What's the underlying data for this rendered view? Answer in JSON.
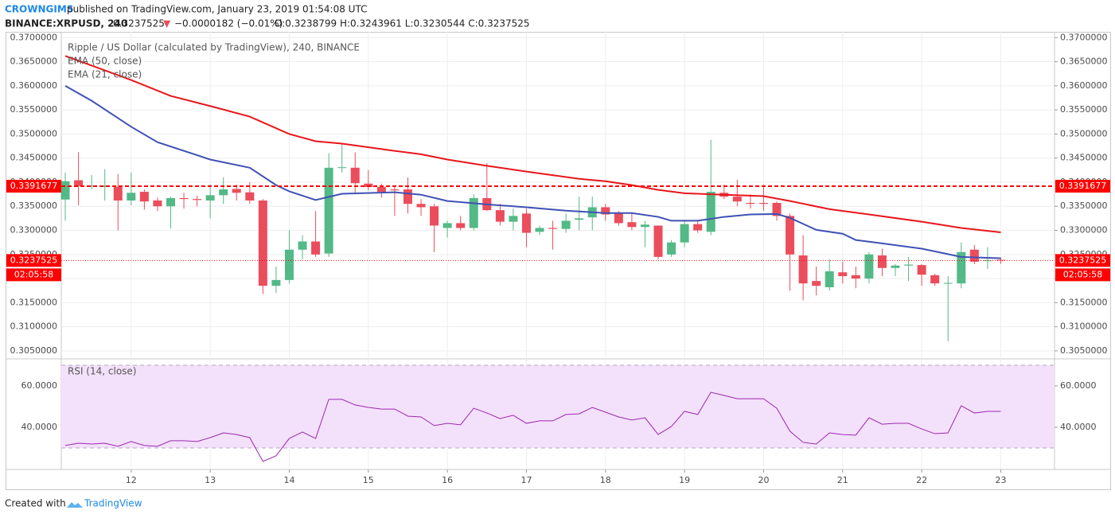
{
  "header": {
    "author": "CROWNGIMS",
    "published": "published on TradingView.com, January 23, 2019 01:54:08 UTC",
    "symbol": "BINANCE:XRPUSD, 240",
    "last": "0.3237525",
    "arrow": "▼",
    "change": "−0.0000182 (−0.01%)",
    "ohlc": "O:0.3238799 H:0.3243961 L:0.3230544 C:0.3237525"
  },
  "footer": {
    "created": "Created with",
    "brand": "TradingView"
  },
  "chart_data": [
    {
      "type": "candlestick",
      "title": "Ripple / US Dollar (calculated by TradingView), 240, BINANCE",
      "up_color": "#53b987",
      "down_color": "#eb4d5c",
      "grid": true,
      "x": [
        11.1667,
        11.3333,
        11.5,
        11.6667,
        11.8333,
        12,
        12.1667,
        12.3333,
        12.5,
        12.6667,
        12.8333,
        13,
        13.1667,
        13.3333,
        13.5,
        13.6667,
        13.8333,
        14,
        14.1667,
        14.3333,
        14.5,
        14.6667,
        14.8333,
        15,
        15.1667,
        15.3333,
        15.5,
        15.6667,
        15.8333,
        16,
        16.1667,
        16.3333,
        16.5,
        16.6667,
        16.8333,
        17,
        17.1667,
        17.3333,
        17.5,
        17.6667,
        17.8333,
        18,
        18.1667,
        18.3333,
        18.5,
        18.6667,
        18.8333,
        19,
        19.1667,
        19.3333,
        19.5,
        19.6667,
        19.8333,
        20,
        20.1667,
        20.3333,
        20.5,
        20.6667,
        20.8333,
        21,
        21.1667,
        21.3333,
        21.5,
        21.6667,
        21.8333,
        22,
        22.1667,
        22.3333,
        22.5,
        22.6667,
        22.8333,
        23
      ],
      "open": [
        0.3364,
        0.3404,
        0.3391,
        0.339,
        0.339,
        0.3362,
        0.338,
        0.3362,
        0.335,
        0.3367,
        0.3365,
        0.3362,
        0.3373,
        0.3386,
        0.3379,
        0.3362,
        0.3185,
        0.3197,
        0.326,
        0.3277,
        0.3252,
        0.343,
        0.343,
        0.3397,
        0.339,
        0.3385,
        0.3385,
        0.3355,
        0.335,
        0.3305,
        0.3315,
        0.3305,
        0.3367,
        0.3342,
        0.3318,
        0.3335,
        0.3297,
        0.3305,
        0.3303,
        0.3322,
        0.3327,
        0.3348,
        0.3335,
        0.3317,
        0.3307,
        0.331,
        0.325,
        0.3275,
        0.3313,
        0.3297,
        0.3378,
        0.337,
        0.3357,
        0.3357,
        0.3357,
        0.333,
        0.3248,
        0.3195,
        0.3182,
        0.3213,
        0.3207,
        0.32,
        0.3248,
        0.3222,
        0.3227,
        0.3228,
        0.3207,
        0.319,
        0.319,
        0.326,
        0.3237,
        0.3238799
      ],
      "high": [
        0.342,
        0.3462,
        0.3415,
        0.3427,
        0.3417,
        0.342,
        0.3385,
        0.3368,
        0.337,
        0.3378,
        0.3372,
        0.3395,
        0.341,
        0.3395,
        0.34,
        0.3365,
        0.3225,
        0.33,
        0.329,
        0.334,
        0.346,
        0.348,
        0.3462,
        0.3425,
        0.3397,
        0.339,
        0.341,
        0.3365,
        0.3355,
        0.332,
        0.333,
        0.3375,
        0.344,
        0.3355,
        0.3345,
        0.3345,
        0.331,
        0.332,
        0.3335,
        0.337,
        0.337,
        0.3355,
        0.334,
        0.3335,
        0.332,
        0.331,
        0.328,
        0.332,
        0.332,
        0.3488,
        0.3395,
        0.3405,
        0.3375,
        0.3395,
        0.336,
        0.3335,
        0.329,
        0.3225,
        0.324,
        0.3235,
        0.3225,
        0.3255,
        0.3262,
        0.323,
        0.3245,
        0.323,
        0.321,
        0.3205,
        0.3275,
        0.327,
        0.3265,
        0.3243961
      ],
      "low": [
        0.332,
        0.3352,
        0.3385,
        0.3362,
        0.33,
        0.3352,
        0.3343,
        0.334,
        0.3304,
        0.3345,
        0.335,
        0.3325,
        0.3355,
        0.3362,
        0.3355,
        0.3168,
        0.317,
        0.319,
        0.324,
        0.3245,
        0.3245,
        0.342,
        0.3375,
        0.3383,
        0.3368,
        0.333,
        0.3335,
        0.333,
        0.3255,
        0.3285,
        0.33,
        0.33,
        0.334,
        0.331,
        0.33,
        0.3265,
        0.329,
        0.326,
        0.3295,
        0.33,
        0.33,
        0.332,
        0.331,
        0.33,
        0.3265,
        0.324,
        0.3245,
        0.3265,
        0.3295,
        0.329,
        0.3365,
        0.335,
        0.3345,
        0.334,
        0.332,
        0.3175,
        0.3155,
        0.3165,
        0.3175,
        0.319,
        0.318,
        0.319,
        0.3205,
        0.3205,
        0.3195,
        0.3185,
        0.3185,
        0.307,
        0.318,
        0.323,
        0.322,
        0.3230544
      ],
      "close": [
        0.3402,
        0.3392,
        0.3393,
        0.3393,
        0.3362,
        0.3378,
        0.336,
        0.335,
        0.3367,
        0.3365,
        0.3363,
        0.3373,
        0.3385,
        0.3378,
        0.3362,
        0.3185,
        0.3197,
        0.326,
        0.3277,
        0.325,
        0.343,
        0.3431,
        0.3398,
        0.339,
        0.338,
        0.3383,
        0.3355,
        0.3348,
        0.331,
        0.3315,
        0.3305,
        0.3367,
        0.3342,
        0.3318,
        0.333,
        0.3295,
        0.3305,
        0.3303,
        0.332,
        0.3325,
        0.3348,
        0.3333,
        0.3315,
        0.3307,
        0.3312,
        0.3245,
        0.3275,
        0.3313,
        0.33,
        0.338,
        0.337,
        0.336,
        0.3355,
        0.3355,
        0.333,
        0.325,
        0.319,
        0.3185,
        0.3215,
        0.3205,
        0.32,
        0.325,
        0.3222,
        0.3227,
        0.3229,
        0.3208,
        0.319,
        0.3191,
        0.3255,
        0.3235,
        0.3238,
        0.3237525
      ],
      "overlays": [
        {
          "name": "EMA (50, close)",
          "color": "#e8161b",
          "x": [
            11.1667,
            12,
            12.5,
            13,
            13.5,
            14,
            14.3333,
            14.6667,
            15.3333,
            15.6667,
            16,
            16.5,
            17,
            17.6667,
            18,
            18.3333,
            18.6667,
            19,
            19.5,
            20,
            20.3333,
            20.8333,
            21.3333,
            22,
            22.5,
            23
          ],
          "values": [
            0.3662,
            0.3612,
            0.3579,
            0.3558,
            0.3536,
            0.35,
            0.3485,
            0.348,
            0.3465,
            0.3458,
            0.3447,
            0.3434,
            0.3422,
            0.3407,
            0.3402,
            0.3394,
            0.3384,
            0.3377,
            0.3374,
            0.3371,
            0.3361,
            0.3344,
            0.3333,
            0.3318,
            0.3305,
            0.3296
          ]
        },
        {
          "name": "EMA (21, close)",
          "color": "#3f51b5",
          "x": [
            11.1667,
            11.5,
            12,
            12.3333,
            13,
            13.5,
            13.8333,
            14,
            14.3333,
            14.6667,
            15.3333,
            15.6667,
            16,
            16.5,
            17,
            17.5,
            18,
            18.3333,
            18.6667,
            18.8333,
            19.1667,
            19.5,
            19.8333,
            20.1667,
            20.3333,
            20.6667,
            21,
            21.1667,
            21.5,
            22,
            22.5,
            22.8333,
            23
          ],
          "values": [
            0.36,
            0.3569,
            0.3515,
            0.3483,
            0.3447,
            0.343,
            0.3394,
            0.3381,
            0.3363,
            0.3376,
            0.3379,
            0.3374,
            0.3361,
            0.3354,
            0.3348,
            0.3341,
            0.3336,
            0.3336,
            0.3328,
            0.332,
            0.332,
            0.3328,
            0.3333,
            0.3334,
            0.3326,
            0.3301,
            0.3293,
            0.328,
            0.3273,
            0.3262,
            0.3245,
            0.3243,
            0.3242
          ]
        }
      ],
      "hlines": [
        {
          "value": 0.3391677,
          "color": "#ff0000",
          "style": "dashed"
        },
        {
          "value": 0.3237525,
          "color": "#ff0000",
          "style": "dotted",
          "countdown": "02:05:58"
        }
      ],
      "xlim": [
        11.116,
        23.68
      ],
      "ylim": [
        0.30334,
        0.3712
      ],
      "yticks": [
        {
          "value": 0.37,
          "label": "0.3700000"
        },
        {
          "value": 0.365,
          "label": "0.3650000"
        },
        {
          "value": 0.36,
          "label": "0.3600000"
        },
        {
          "value": 0.355,
          "label": "0.3550000"
        },
        {
          "value": 0.35,
          "label": "0.3500000"
        },
        {
          "value": 0.345,
          "label": "0.3450000"
        },
        {
          "value": 0.34,
          "label": "0.3400000"
        },
        {
          "value": 0.335,
          "label": "0.3350000"
        },
        {
          "value": 0.33,
          "label": "0.3300000"
        },
        {
          "value": 0.325,
          "label": "0.3250000"
        },
        {
          "value": 0.32,
          "label": "0.3200000"
        },
        {
          "value": 0.315,
          "label": "0.3150000"
        },
        {
          "value": 0.31,
          "label": "0.3100000"
        },
        {
          "value": 0.305,
          "label": "0.3050000"
        }
      ]
    },
    {
      "type": "line",
      "title": "RSI (14, close)",
      "color": "#9c27b0",
      "band": {
        "values": [
          30,
          70
        ],
        "color": "#f3e1fb"
      },
      "grid": true,
      "x": [
        11.1667,
        11.3333,
        11.5,
        11.6667,
        11.8333,
        12,
        12.1667,
        12.3333,
        12.5,
        12.6667,
        12.8333,
        13,
        13.1667,
        13.3333,
        13.5,
        13.6667,
        13.8333,
        14,
        14.1667,
        14.3333,
        14.5,
        14.6667,
        14.8333,
        15,
        15.1667,
        15.3333,
        15.5,
        15.6667,
        15.8333,
        16,
        16.1667,
        16.3333,
        16.5,
        16.6667,
        16.8333,
        17,
        17.1667,
        17.3333,
        17.5,
        17.6667,
        17.8333,
        18,
        18.1667,
        18.3333,
        18.5,
        18.6667,
        18.8333,
        19,
        19.1667,
        19.3333,
        19.5,
        19.6667,
        19.8333,
        20,
        20.1667,
        20.3333,
        20.5,
        20.6667,
        20.8333,
        21,
        21.1667,
        21.3333,
        21.5,
        21.6667,
        21.8333,
        22,
        22.1667,
        22.3333,
        22.5,
        22.6667,
        22.8333,
        23
      ],
      "values": [
        31.2,
        32.3,
        31.9,
        32.3,
        30.8,
        33.1,
        31.2,
        30.8,
        33.5,
        33.5,
        33.1,
        35,
        37.3,
        36.5,
        35,
        23.5,
        26.2,
        34.6,
        37.7,
        34.6,
        53.5,
        53.5,
        50.8,
        49.6,
        48.8,
        48.8,
        45.4,
        45,
        40.8,
        41.9,
        41.2,
        49.2,
        46.9,
        44.2,
        45.8,
        41.9,
        43.1,
        43.1,
        46.2,
        46.5,
        49.6,
        47.3,
        45,
        43.5,
        44.6,
        36.5,
        40.4,
        47.7,
        46.2,
        56.9,
        55.4,
        53.8,
        53.8,
        53.8,
        49.2,
        38.1,
        32.7,
        31.9,
        37.3,
        36.5,
        36.2,
        44.6,
        41.5,
        41.9,
        41.9,
        39.2,
        36.9,
        37.3,
        50.4,
        46.9,
        47.7,
        47.7
      ],
      "xlim": [
        11.116,
        23.68
      ],
      "ylim": [
        19.6,
        72.7
      ],
      "yticks": [
        {
          "value": 60,
          "label": "60.0000"
        },
        {
          "value": 40,
          "label": "40.0000"
        }
      ],
      "xticks": [
        12,
        13,
        14,
        15,
        16,
        17,
        18,
        19,
        20,
        21,
        22,
        23
      ]
    }
  ]
}
